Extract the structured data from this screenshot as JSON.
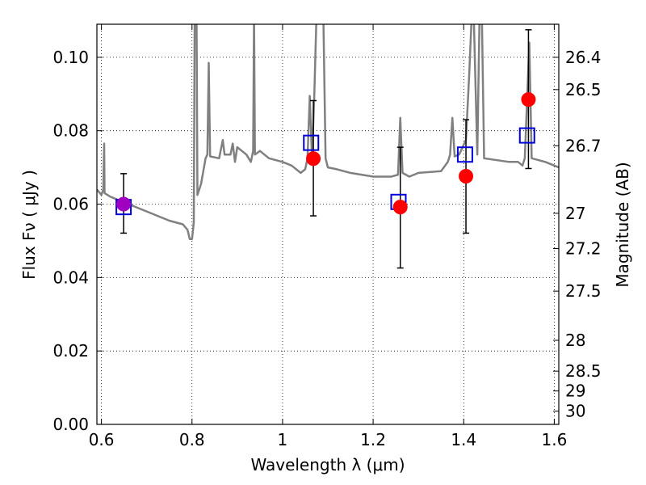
{
  "chart_data": {
    "type": "scatter",
    "xlabel": "Wavelength  λ (μm)",
    "ylabel": "Flux  Fν  ( μJy )",
    "y2label": "Magnitude (AB)",
    "xlim": [
      0.59,
      1.61
    ],
    "ylim": [
      0.0,
      0.109
    ],
    "grid": "dotted",
    "x_ticks": [
      0.6,
      0.8,
      1.0,
      1.2,
      1.4,
      1.6
    ],
    "x_tick_labels": [
      "0.6",
      "0.8",
      "1",
      "1.2",
      "1.4",
      "1.6"
    ],
    "y_ticks": [
      0.0,
      0.02,
      0.04,
      0.06,
      0.08,
      0.1
    ],
    "y_tick_labels": [
      "0.00",
      "0.02",
      "0.04",
      "0.06",
      "0.08",
      "0.10"
    ],
    "mag_ticks": [
      {
        "label": "26.4",
        "flux": 0.1
      },
      {
        "label": "26.5",
        "flux": 0.0912
      },
      {
        "label": "26.7",
        "flux": 0.0759
      },
      {
        "label": "27",
        "flux": 0.0575
      },
      {
        "label": "27.2",
        "flux": 0.0479
      },
      {
        "label": "27.5",
        "flux": 0.0363
      },
      {
        "label": "28",
        "flux": 0.0229
      },
      {
        "label": "28.5",
        "flux": 0.0145
      },
      {
        "label": "29",
        "flux": 0.0091
      },
      {
        "label": "30",
        "flux": 0.0036
      }
    ],
    "model_spectrum": {
      "color": "#808080",
      "points": [
        [
          0.59,
          0.064
        ],
        [
          0.6,
          0.0625
        ],
        [
          0.604,
          0.064
        ],
        [
          0.606,
          0.0765
        ],
        [
          0.607,
          0.063
        ],
        [
          0.62,
          0.062
        ],
        [
          0.65,
          0.0605
        ],
        [
          0.7,
          0.058
        ],
        [
          0.75,
          0.0555
        ],
        [
          0.78,
          0.0545
        ],
        [
          0.79,
          0.053
        ],
        [
          0.795,
          0.0505
        ],
        [
          0.8,
          0.0505
        ],
        [
          0.804,
          0.055
        ],
        [
          0.806,
          0.112
        ],
        [
          0.81,
          0.112
        ],
        [
          0.812,
          0.0625
        ],
        [
          0.82,
          0.0655
        ],
        [
          0.825,
          0.069
        ],
        [
          0.83,
          0.0725
        ],
        [
          0.834,
          0.0735
        ],
        [
          0.837,
          0.0985
        ],
        [
          0.84,
          0.073
        ],
        [
          0.86,
          0.0725
        ],
        [
          0.868,
          0.0775
        ],
        [
          0.872,
          0.0735
        ],
        [
          0.885,
          0.0735
        ],
        [
          0.89,
          0.0765
        ],
        [
          0.895,
          0.0715
        ],
        [
          0.9,
          0.0755
        ],
        [
          0.92,
          0.0735
        ],
        [
          0.93,
          0.0715
        ],
        [
          0.935,
          0.0745
        ],
        [
          0.937,
          0.112
        ],
        [
          0.939,
          0.0735
        ],
        [
          0.95,
          0.0745
        ],
        [
          0.97,
          0.0725
        ],
        [
          1.0,
          0.0715
        ],
        [
          1.02,
          0.0705
        ],
        [
          1.04,
          0.0685
        ],
        [
          1.05,
          0.0695
        ],
        [
          1.055,
          0.0725
        ],
        [
          1.06,
          0.0895
        ],
        [
          1.065,
          0.0725
        ],
        [
          1.07,
          0.0895
        ],
        [
          1.075,
          0.112
        ],
        [
          1.09,
          0.112
        ],
        [
          1.095,
          0.0725
        ],
        [
          1.1,
          0.07
        ],
        [
          1.12,
          0.0695
        ],
        [
          1.15,
          0.0685
        ],
        [
          1.2,
          0.0675
        ],
        [
          1.24,
          0.0675
        ],
        [
          1.255,
          0.068
        ],
        [
          1.26,
          0.0835
        ],
        [
          1.265,
          0.0685
        ],
        [
          1.28,
          0.0675
        ],
        [
          1.3,
          0.0685
        ],
        [
          1.35,
          0.069
        ],
        [
          1.365,
          0.0715
        ],
        [
          1.37,
          0.0735
        ],
        [
          1.375,
          0.0835
        ],
        [
          1.38,
          0.073
        ],
        [
          1.39,
          0.0735
        ],
        [
          1.405,
          0.0775
        ],
        [
          1.412,
          0.095
        ],
        [
          1.418,
          0.112
        ],
        [
          1.422,
          0.112
        ],
        [
          1.43,
          0.0735
        ],
        [
          1.435,
          0.112
        ],
        [
          1.44,
          0.112
        ],
        [
          1.445,
          0.0725
        ],
        [
          1.5,
          0.0715
        ],
        [
          1.52,
          0.0715
        ],
        [
          1.53,
          0.0705
        ],
        [
          1.535,
          0.0725
        ],
        [
          1.545,
          0.104
        ],
        [
          1.55,
          0.0725
        ],
        [
          1.58,
          0.0715
        ],
        [
          1.6,
          0.0705
        ],
        [
          1.61,
          0.07
        ]
      ]
    },
    "observed": {
      "color": "#ff0000",
      "points": [
        {
          "x": 1.068,
          "y": 0.0724,
          "yerr_low": 0.0568,
          "yerr_high": 0.0882
        },
        {
          "x": 1.26,
          "y": 0.0592,
          "yerr_low": 0.0426,
          "yerr_high": 0.0755
        },
        {
          "x": 1.405,
          "y": 0.0676,
          "yerr_low": 0.0521,
          "yerr_high": 0.083
        },
        {
          "x": 1.543,
          "y": 0.0885,
          "yerr_low": 0.0697,
          "yerr_high": 0.1075
        }
      ]
    },
    "observed_optical": {
      "color": "#a000c0",
      "points": [
        {
          "x": 0.649,
          "y": 0.06,
          "yerr_low": 0.0521,
          "yerr_high": 0.0683
        }
      ]
    },
    "model_photometry": {
      "color": "#0000dd",
      "points": [
        {
          "x": 0.649,
          "y": 0.0592
        },
        {
          "x": 1.063,
          "y": 0.0767
        },
        {
          "x": 1.256,
          "y": 0.0606
        },
        {
          "x": 1.403,
          "y": 0.0735
        },
        {
          "x": 1.54,
          "y": 0.0787
        }
      ]
    }
  }
}
